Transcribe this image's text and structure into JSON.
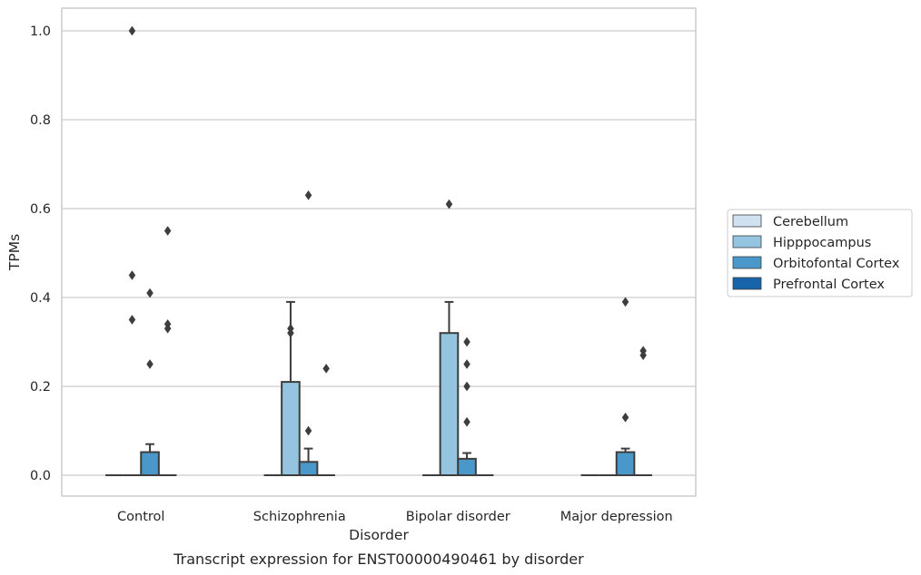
{
  "caption": "Transcript expression for ENST00000490461 by disorder",
  "chart_data": {
    "type": "box",
    "xlabel": "Disorder",
    "ylabel": "TPMs",
    "ylim": [
      -0.05,
      1.05
    ],
    "yticks": [
      "0.0",
      "0.2",
      "0.4",
      "0.6",
      "0.8",
      "1.0"
    ],
    "grid": "horizontal",
    "legend_position": "right",
    "categories": [
      "Control",
      "Schizophrenia",
      "Bipolar disorder",
      "Major depression"
    ],
    "series": [
      {
        "name": "Cerebellum",
        "color": "#d0e1f2",
        "boxes": [
          {
            "q1": 0,
            "median": 0,
            "q3": 0,
            "whislo": 0,
            "whishi": 0,
            "fliers": []
          },
          {
            "q1": 0,
            "median": 0,
            "q3": 0,
            "whislo": 0,
            "whishi": 0,
            "fliers": []
          },
          {
            "q1": 0,
            "median": 0,
            "q3": 0,
            "whislo": 0,
            "whishi": 0,
            "fliers": []
          },
          {
            "q1": 0,
            "median": 0,
            "q3": 0,
            "whislo": 0,
            "whishi": 0,
            "fliers": []
          }
        ]
      },
      {
        "name": "Hipppocampus",
        "color": "#94c4df",
        "boxes": [
          {
            "q1": 0,
            "median": 0,
            "q3": 0,
            "whislo": 0,
            "whishi": 0,
            "fliers": [
              1.0,
              0.45,
              0.35
            ]
          },
          {
            "q1": 0,
            "median": 0,
            "q3": 0.21,
            "whislo": 0,
            "whishi": 0.39,
            "fliers": [
              0.33,
              0.32
            ]
          },
          {
            "q1": 0,
            "median": 0,
            "q3": 0.32,
            "whislo": 0,
            "whishi": 0.39,
            "fliers": [
              0.61
            ]
          },
          {
            "q1": 0,
            "median": 0,
            "q3": 0,
            "whislo": 0,
            "whishi": 0,
            "fliers": []
          }
        ]
      },
      {
        "name": "Orbitofontal Cortex",
        "color": "#4a98c9",
        "boxes": [
          {
            "q1": 0,
            "median": 0,
            "q3": 0.052,
            "whislo": 0,
            "whishi": 0.07,
            "fliers": [
              0.41,
              0.25
            ]
          },
          {
            "q1": 0,
            "median": 0,
            "q3": 0.03,
            "whislo": 0,
            "whishi": 0.06,
            "fliers": [
              0.63,
              0.1
            ]
          },
          {
            "q1": 0,
            "median": 0,
            "q3": 0.037,
            "whislo": 0,
            "whishi": 0.05,
            "fliers": [
              0.2,
              0.12,
              0.3,
              0.25
            ]
          },
          {
            "q1": 0,
            "median": 0,
            "q3": 0.052,
            "whislo": 0,
            "whishi": 0.06,
            "fliers": [
              0.39,
              0.13
            ]
          }
        ]
      },
      {
        "name": "Prefrontal Cortex",
        "color": "#1764ab",
        "boxes": [
          {
            "q1": 0,
            "median": 0,
            "q3": 0,
            "whislo": 0,
            "whishi": 0,
            "fliers": [
              0.55,
              0.34,
              0.33
            ]
          },
          {
            "q1": 0,
            "median": 0,
            "q3": 0,
            "whislo": 0,
            "whishi": 0,
            "fliers": [
              0.24
            ]
          },
          {
            "q1": 0,
            "median": 0,
            "q3": 0,
            "whislo": 0,
            "whishi": 0,
            "fliers": []
          },
          {
            "q1": 0,
            "median": 0,
            "q3": 0,
            "whislo": 0,
            "whishi": 0,
            "fliers": [
              0.28,
              0.27
            ]
          }
        ]
      }
    ]
  }
}
